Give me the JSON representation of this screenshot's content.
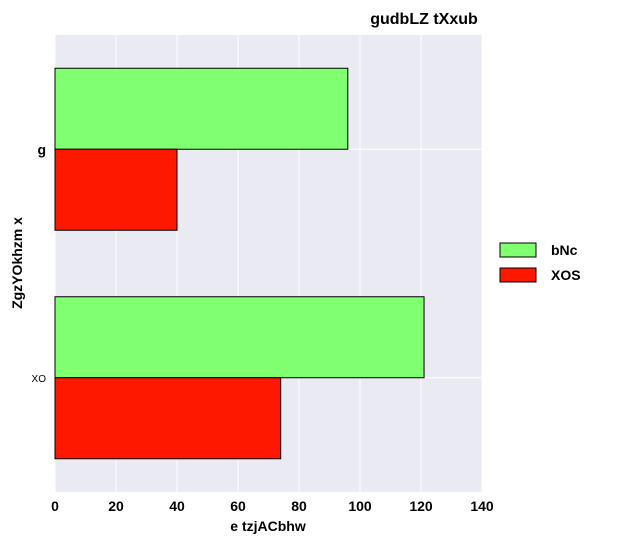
{
  "chart_data": {
    "type": "bar",
    "orientation": "horizontal",
    "title": "gudbLZ tXxub",
    "xlabel": "e  tzjACbhw",
    "ylabel": "ZgzYOkhzm x",
    "categories": [
      "g",
      "XO"
    ],
    "series": [
      {
        "name": "bNc",
        "values": [
          96,
          121
        ],
        "color": "#80ff70"
      },
      {
        "name": "XOS",
        "values": [
          40,
          74
        ],
        "color": "#ff1800"
      }
    ],
    "xlim": [
      0,
      140
    ],
    "xticks": [
      "0",
      "20",
      "40",
      "60",
      "80",
      "100",
      "120",
      "140"
    ],
    "grid": true,
    "legend_position": "right"
  }
}
